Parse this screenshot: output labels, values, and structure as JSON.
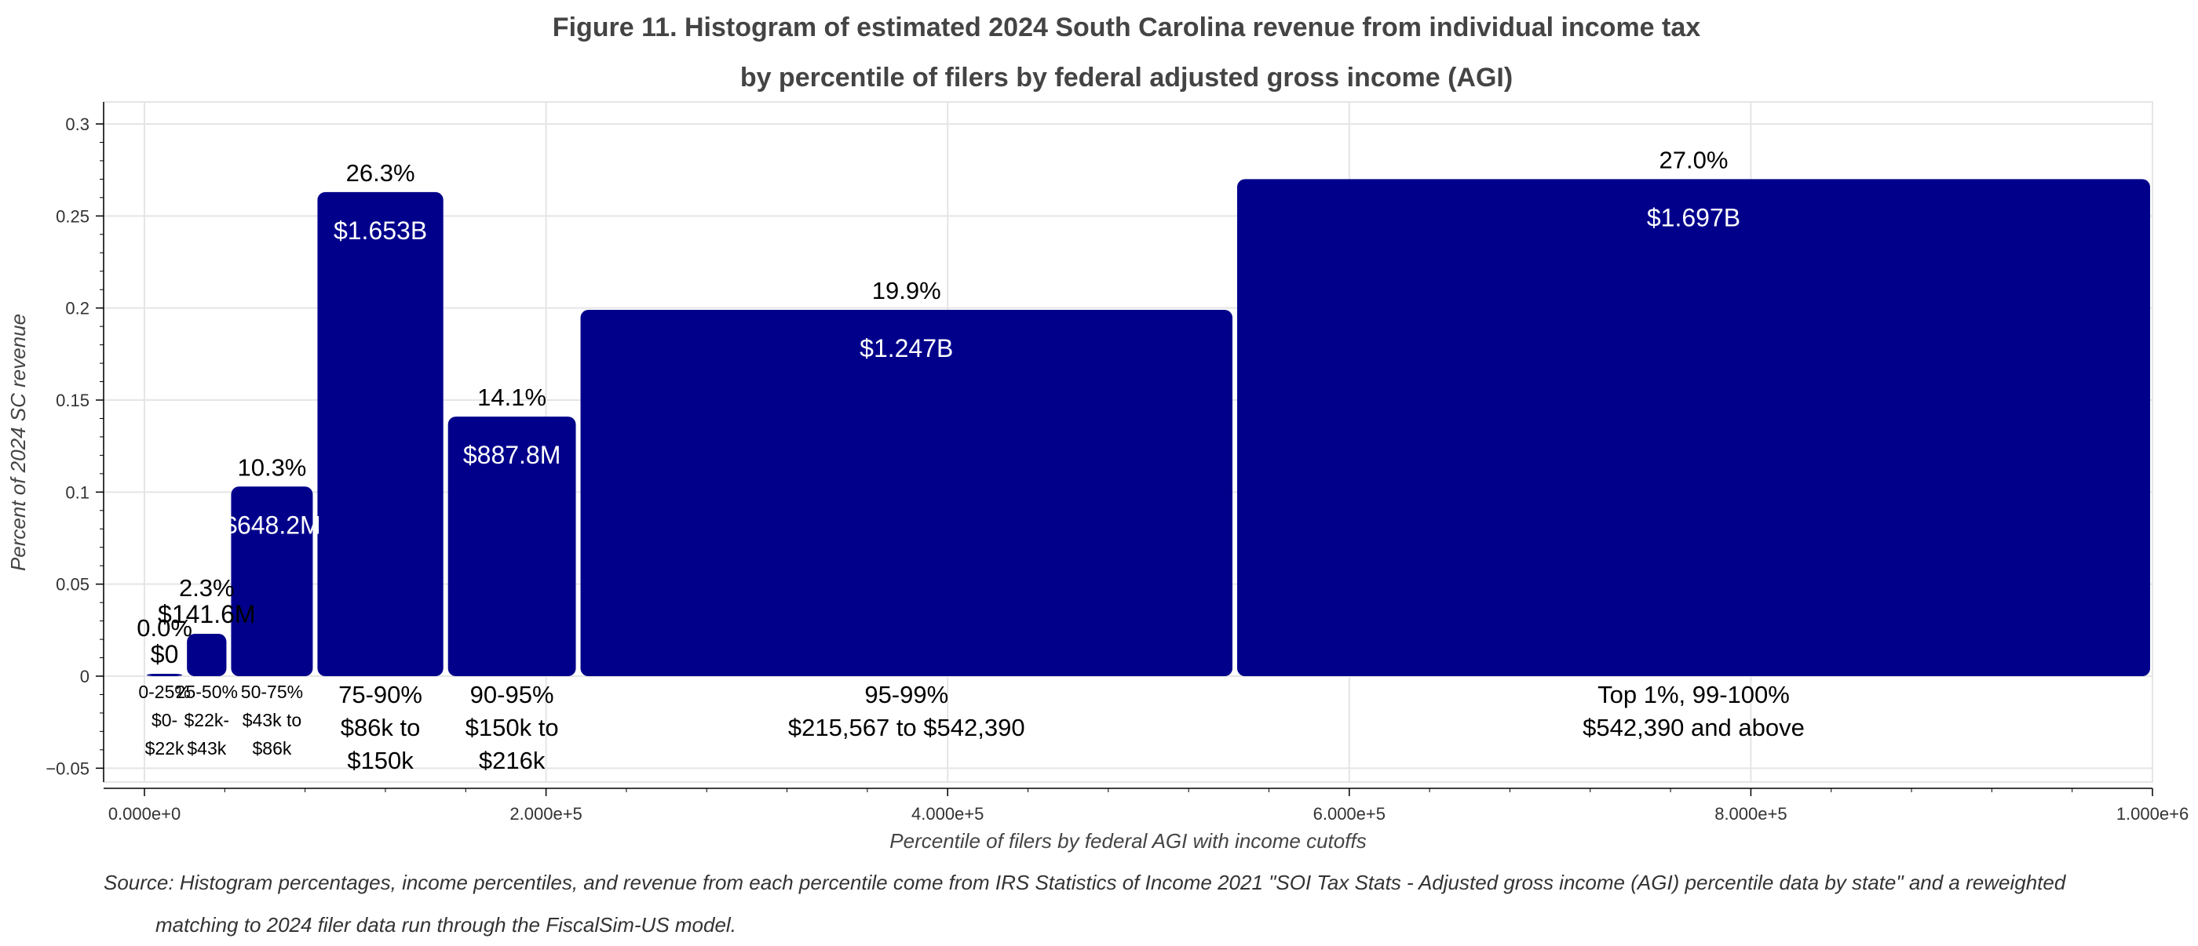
{
  "chart_data": {
    "type": "bar",
    "title": "Figure 11. Histogram of estimated 2024 South Carolina revenue from individual income tax",
    "subtitle": "by percentile of filers by federal adjusted gross income (AGI)",
    "xlabel": "Percentile of filers by federal AGI with income cutoffs",
    "ylabel": "Percent of 2024 SC revenue",
    "xlim": [
      -50000,
      1000000
    ],
    "ylim": [
      -0.06,
      0.31
    ],
    "x_ticks": [
      0,
      200000,
      400000,
      600000,
      800000,
      1000000
    ],
    "x_tick_labels": [
      "0.000e+0",
      "2.000e+5",
      "4.000e+5",
      "6.000e+5",
      "8.000e+5",
      "1.000e+6"
    ],
    "y_ticks": [
      -0.05,
      0,
      0.05,
      0.1,
      0.15,
      0.2,
      0.25,
      0.3
    ],
    "y_tick_labels": [
      "−0.05",
      "0",
      "0.05",
      "0.1",
      "0.15",
      "0.2",
      "0.25",
      "0.3"
    ],
    "grid": true,
    "bar_color": "#00008b",
    "bars": [
      {
        "x_start": 0,
        "x_end": 20000,
        "value": 0.0,
        "pct_label": "0.0%",
        "rev_label": "$0",
        "category": [
          "0-25%",
          "$0-",
          "$22k"
        ]
      },
      {
        "x_start": 20000,
        "x_end": 42000,
        "value": 0.023,
        "pct_label": "2.3%",
        "rev_label": "$141.6M",
        "category": [
          "25-50%",
          "$22k-",
          "$43k"
        ]
      },
      {
        "x_start": 42000,
        "x_end": 85000,
        "value": 0.103,
        "pct_label": "10.3%",
        "rev_label": "$648.2M",
        "category": [
          "50-75%",
          "$43k to",
          "$86k"
        ]
      },
      {
        "x_start": 85000,
        "x_end": 150000,
        "value": 0.263,
        "pct_label": "26.3%",
        "rev_label": "$1.653B",
        "category": [
          "75-90%",
          "$86k to",
          "$150k"
        ]
      },
      {
        "x_start": 150000,
        "x_end": 216000,
        "value": 0.141,
        "pct_label": "14.1%",
        "rev_label": "$887.8M",
        "category": [
          "90-95%",
          "$150k to",
          "$216k"
        ]
      },
      {
        "x_start": 216000,
        "x_end": 543000,
        "value": 0.199,
        "pct_label": "19.9%",
        "rev_label": "$1.247B",
        "category": [
          "95-99%",
          "$215,567 to $542,390"
        ]
      },
      {
        "x_start": 543000,
        "x_end": 1000000,
        "value": 0.27,
        "pct_label": "27.0%",
        "rev_label": "$1.697B",
        "category": [
          "Top 1%, 99-100%",
          "$542,390 and above"
        ]
      }
    ]
  },
  "source": {
    "line1": "Source: Histogram percentages, income percentiles, and revenue from each percentile come from IRS Statistics of Income 2021 \"SOI Tax Stats - Adjusted gross income (AGI) percentile data by state\" and a reweighted",
    "line2": "matching to 2024 filer data run through the FiscalSim-US model."
  }
}
